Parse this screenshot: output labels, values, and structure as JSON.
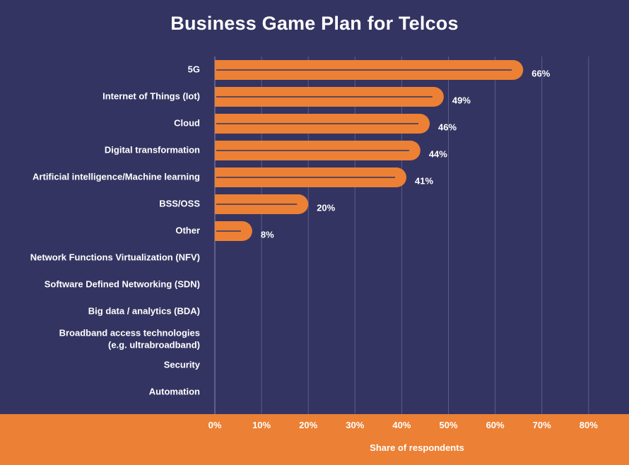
{
  "colors": {
    "background": "#343462",
    "bar": "#ec8034",
    "band": "#ec8034",
    "grid": "#5d5d8c",
    "text": "#ffffff"
  },
  "chart_data": {
    "type": "bar",
    "orientation": "horizontal",
    "title": "Business Game Plan for Telcos",
    "xlabel": "Share of respondents",
    "ylabel": "",
    "xlim": [
      0,
      80
    ],
    "grid": true,
    "value_format": "percent",
    "categories": [
      "5G",
      "Internet of Things (Iot)",
      "Cloud",
      "Digital transformation",
      "Artificial intelligence/Machine learning",
      "BSS/OSS",
      "Other",
      "Network Functions Virtualization (NFV)",
      "Software Defined Networking (SDN)",
      "Big data / analytics (BDA)",
      "Broadband access technologies\n(e.g. ultrabroadband)",
      "Security",
      "Automation"
    ],
    "values": [
      66,
      49,
      46,
      44,
      41,
      20,
      8,
      null,
      null,
      null,
      null,
      null,
      null
    ],
    "value_labels": [
      "66%",
      "49%",
      "46%",
      "44%",
      "41%",
      "20%",
      "8%",
      "",
      "",
      "",
      "",
      "",
      ""
    ],
    "ticks": [
      0,
      10,
      20,
      30,
      40,
      50,
      60,
      70,
      80
    ],
    "tick_labels": [
      "0%",
      "10%",
      "20%",
      "30%",
      "40%",
      "50%",
      "60%",
      "70%",
      "80%"
    ]
  }
}
